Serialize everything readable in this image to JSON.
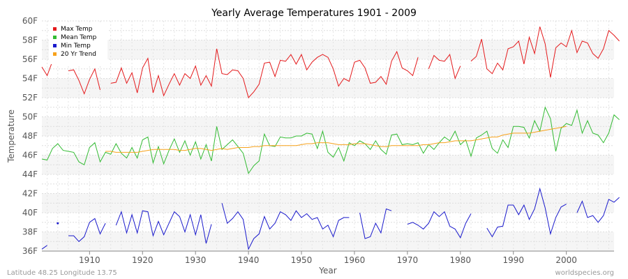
{
  "chart_data": {
    "type": "line",
    "title": "Yearly Average Temperatures 1901 - 2009",
    "xlabel": "Year",
    "ylabel": "Temperature",
    "xlim": [
      1901,
      2009
    ],
    "ylim": [
      36,
      60
    ],
    "xticks": [
      1910,
      1920,
      1930,
      1940,
      1950,
      1960,
      1970,
      1980,
      1990,
      2000
    ],
    "yticks": [
      36,
      38,
      40,
      42,
      44,
      46,
      48,
      50,
      52,
      54,
      56,
      58,
      60
    ],
    "ytick_labels": [
      "36F",
      "38F",
      "40F",
      "42F",
      "44F",
      "46F",
      "48F",
      "50F",
      "52F",
      "54F",
      "56F",
      "58F",
      "60F"
    ],
    "grid": true,
    "legend_position": "top-left",
    "x_start": 1901,
    "series": [
      {
        "name": "Max Temp",
        "color": "#e41a1c",
        "values": [
          55.2,
          54.3,
          55.8,
          56.4,
          null,
          54.8,
          54.9,
          53.8,
          52.4,
          53.9,
          55.0,
          52.8,
          null,
          53.5,
          53.6,
          55.1,
          53.5,
          54.6,
          52.5,
          55.1,
          56.1,
          52.5,
          54.3,
          52.2,
          53.4,
          54.5,
          53.3,
          54.5,
          54.0,
          55.3,
          53.3,
          54.3,
          53.2,
          57.1,
          54.5,
          54.4,
          54.9,
          54.8,
          54.0,
          52.0,
          52.6,
          53.4,
          55.6,
          55.7,
          54.2,
          55.9,
          55.8,
          56.5,
          55.5,
          56.5,
          54.9,
          55.7,
          56.2,
          56.5,
          56.2,
          55.0,
          53.2,
          54.0,
          53.7,
          55.7,
          55.9,
          55.1,
          53.5,
          53.6,
          54.2,
          53.4,
          55.8,
          56.8,
          55.1,
          54.8,
          54.3,
          56.2,
          null,
          55.0,
          56.4,
          55.9,
          55.8,
          56.5,
          54.0,
          55.3,
          null,
          55.8,
          56.3,
          58.1,
          55.0,
          54.5,
          55.6,
          54.9,
          57.1,
          57.3,
          57.9,
          55.5,
          58.3,
          56.6,
          59.4,
          57.6,
          54.1,
          57.2,
          57.7,
          57.3,
          59.0,
          56.7,
          57.9,
          57.7,
          56.6,
          56.1,
          57.1,
          59.0,
          58.5,
          57.9
        ]
      },
      {
        "name": "Mean Temp",
        "color": "#33bb33",
        "values": [
          45.6,
          45.5,
          46.7,
          47.2,
          46.5,
          46.4,
          46.3,
          45.3,
          45.0,
          46.8,
          47.3,
          45.3,
          46.3,
          46.1,
          47.2,
          46.2,
          45.7,
          46.8,
          45.7,
          47.6,
          47.9,
          45.2,
          46.9,
          45.1,
          46.5,
          47.7,
          46.3,
          47.5,
          46.0,
          47.4,
          45.6,
          47.1,
          45.4,
          49.0,
          46.6,
          47.1,
          47.6,
          46.9,
          46.2,
          44.1,
          44.9,
          45.4,
          48.2,
          47.0,
          46.9,
          47.9,
          47.8,
          47.8,
          48.0,
          48.0,
          48.3,
          48.2,
          46.7,
          48.5,
          46.3,
          45.8,
          46.8,
          45.4,
          47.3,
          47.0,
          47.5,
          47.2,
          46.6,
          47.5,
          46.6,
          46.1,
          48.1,
          48.2,
          47.1,
          47.2,
          47.1,
          47.3,
          46.2,
          47.1,
          46.6,
          47.3,
          47.9,
          47.5,
          48.5,
          47.1,
          47.6,
          45.9,
          47.8,
          48.1,
          48.5,
          46.7,
          46.2,
          47.6,
          46.8,
          49.0,
          49.0,
          48.9,
          47.8,
          49.6,
          48.5,
          51.0,
          49.8,
          46.4,
          48.8,
          49.3,
          49.1,
          50.7,
          48.3,
          49.6,
          48.3,
          48.1,
          47.3,
          48.3,
          50.2,
          49.7
        ]
      },
      {
        "name": "Min Temp",
        "color": "#1a1acc",
        "values": [
          36.2,
          36.6,
          null,
          38.9,
          null,
          37.6,
          37.6,
          37.0,
          37.5,
          39.0,
          39.4,
          37.8,
          38.9,
          null,
          38.7,
          40.1,
          37.9,
          39.8,
          37.9,
          40.2,
          40.1,
          37.6,
          39.1,
          37.7,
          38.9,
          40.1,
          39.6,
          38.0,
          39.8,
          37.7,
          39.8,
          36.8,
          38.8,
          null,
          41.0,
          38.9,
          39.4,
          40.1,
          39.3,
          36.2,
          37.3,
          37.8,
          39.6,
          38.3,
          38.9,
          40.1,
          39.8,
          39.2,
          40.2,
          39.5,
          39.9,
          39.3,
          39.5,
          38.3,
          38.7,
          37.5,
          39.2,
          39.5,
          39.5,
          null,
          40.0,
          37.3,
          37.5,
          38.9,
          37.9,
          40.4,
          40.2,
          null,
          null,
          38.8,
          39.0,
          38.7,
          38.3,
          38.9,
          40.1,
          39.6,
          40.1,
          38.6,
          38.3,
          37.4,
          38.9,
          39.9,
          null,
          null,
          38.4,
          37.5,
          38.5,
          38.6,
          40.8,
          40.8,
          39.8,
          40.8,
          39.3,
          40.4,
          42.5,
          40.5,
          37.8,
          39.5,
          40.6,
          40.9,
          null,
          40.0,
          41.2,
          39.5,
          39.7,
          39.0,
          39.7,
          41.4,
          41.1,
          41.6
        ]
      },
      {
        "name": "20 Yr Trend",
        "color": "#f7a21b",
        "values": [
          null,
          null,
          null,
          null,
          null,
          null,
          null,
          null,
          null,
          null,
          null,
          null,
          46.4,
          46.4,
          46.3,
          46.3,
          46.3,
          46.3,
          46.3,
          46.4,
          46.5,
          46.6,
          46.6,
          46.6,
          46.6,
          46.6,
          46.5,
          46.5,
          46.6,
          46.7,
          46.7,
          46.6,
          46.5,
          46.6,
          46.7,
          46.6,
          46.7,
          46.8,
          46.8,
          46.8,
          46.9,
          46.9,
          47.0,
          47.0,
          47.0,
          47.0,
          47.0,
          47.0,
          47.0,
          47.1,
          47.2,
          47.2,
          47.3,
          47.3,
          47.3,
          47.2,
          47.1,
          47.1,
          47.1,
          47.2,
          47.2,
          47.2,
          47.1,
          47.0,
          46.9,
          46.9,
          47.0,
          47.0,
          47.0,
          47.0,
          47.0,
          47.0,
          47.1,
          47.1,
          47.2,
          47.3,
          47.3,
          47.4,
          47.5,
          47.5,
          47.5,
          47.5,
          47.6,
          47.7,
          47.8,
          47.9,
          47.9,
          48.1,
          48.2,
          48.3,
          48.3,
          48.3,
          48.3,
          48.4,
          48.5,
          48.6,
          48.7,
          48.8,
          48.9,
          49.0,
          null,
          null,
          null,
          null,
          null,
          null,
          null,
          null,
          null
        ]
      }
    ]
  },
  "footer": {
    "location": "Latitude 48.25 Longitude 13.75",
    "source": "worldspecies.org"
  }
}
